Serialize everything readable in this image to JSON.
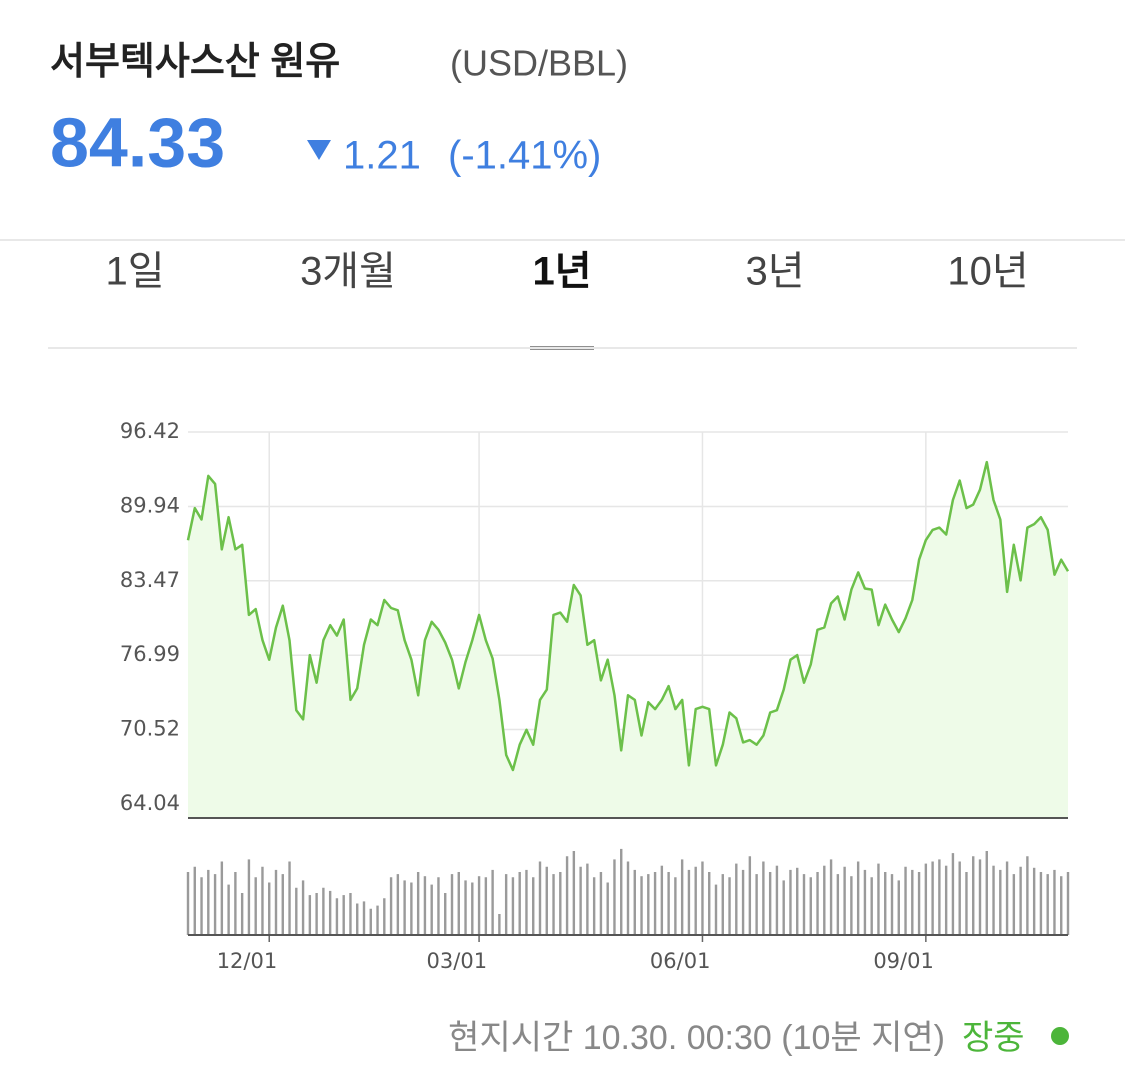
{
  "header": {
    "title": "서부텍사스산 원유",
    "unit": "(USD/BBL)",
    "price": 84.33,
    "change": 1.21,
    "change_pct": "(-1.41%)"
  },
  "tabs": {
    "items": [
      "1일",
      "3개월",
      "1년",
      "3년",
      "10년"
    ],
    "selected": 2
  },
  "footer": {
    "time": "현지시간 10.30. 00:30 (10분 지연)",
    "status": "장중"
  },
  "chart_data": [
    {
      "type": "line",
      "color": "#6cc04a",
      "fill": "#eefbe8",
      "grid": true,
      "values": [
        87.0,
        89.8,
        88.8,
        92.6,
        91.9,
        86.2,
        89.0,
        86.2,
        86.6,
        80.5,
        81.0,
        78.3,
        76.6,
        79.4,
        81.3,
        78.3,
        72.2,
        71.4,
        77.0,
        74.6,
        78.3,
        79.6,
        78.7,
        80.1,
        73.1,
        74.1,
        77.9,
        80.1,
        79.6,
        81.8,
        81.1,
        80.9,
        78.3,
        76.6,
        73.5,
        78.3,
        79.9,
        79.2,
        78.1,
        76.6,
        74.1,
        76.4,
        78.3,
        80.5,
        78.3,
        76.7,
        73.1,
        68.3,
        67.0,
        69.2,
        70.5,
        69.2,
        73.1,
        74.0,
        80.5,
        80.7,
        79.9,
        83.1,
        82.2,
        77.9,
        78.3,
        74.8,
        76.6,
        73.5,
        68.7,
        73.5,
        73.1,
        70.0,
        72.9,
        72.3,
        73.1,
        74.3,
        72.3,
        73.1,
        67.4,
        72.3,
        72.5,
        72.3,
        67.4,
        69.2,
        72.0,
        71.5,
        69.4,
        69.6,
        69.2,
        70.0,
        72.0,
        72.2,
        74.0,
        76.6,
        77.0,
        74.6,
        76.2,
        79.2,
        79.4,
        81.5,
        82.1,
        80.1,
        82.7,
        84.2,
        82.8,
        82.7,
        79.6,
        81.4,
        80.1,
        79.0,
        80.2,
        81.8,
        85.3,
        87.0,
        87.9,
        88.1,
        87.5,
        90.5,
        92.2,
        89.8,
        90.1,
        91.4,
        93.8,
        90.5,
        88.8,
        82.5,
        86.6,
        83.5,
        88.1,
        88.4,
        89.0,
        87.9,
        84.0,
        85.3,
        84.3
      ],
      "xlim": [
        0,
        130
      ],
      "xticks": [
        {
          "value": 12,
          "label": "12/01"
        },
        {
          "value": 43,
          "label": "03/01"
        },
        {
          "value": 76,
          "label": "06/01"
        },
        {
          "value": 109,
          "label": "09/01"
        }
      ],
      "ylim": [
        62.82,
        96.42
      ],
      "yticks": [
        64.04,
        70.52,
        76.99,
        83.47,
        89.94,
        96.42
      ]
    },
    {
      "type": "bar",
      "color": "#9a9a9a",
      "xlim": [
        0,
        130
      ],
      "ylim": [
        0,
        100
      ],
      "values": [
        60,
        65,
        55,
        62,
        58,
        70,
        48,
        60,
        40,
        72,
        55,
        65,
        50,
        62,
        58,
        70,
        45,
        52,
        38,
        40,
        45,
        42,
        35,
        38,
        40,
        30,
        32,
        25,
        28,
        35,
        55,
        58,
        52,
        50,
        60,
        56,
        48,
        55,
        40,
        58,
        60,
        52,
        50,
        56,
        55,
        62,
        20,
        58,
        55,
        60,
        62,
        55,
        70,
        65,
        58,
        60,
        75,
        80,
        65,
        68,
        55,
        60,
        50,
        72,
        82,
        70,
        62,
        56,
        58,
        60,
        66,
        60,
        55,
        72,
        62,
        65,
        70,
        60,
        48,
        58,
        55,
        68,
        62,
        75,
        58,
        70,
        60,
        66,
        52,
        62,
        64,
        58,
        55,
        60,
        66,
        72,
        58,
        65,
        56,
        70,
        62,
        55,
        68,
        60,
        58,
        52,
        65,
        62,
        60,
        68,
        70,
        72,
        66,
        78,
        70,
        60,
        75,
        72,
        80,
        66,
        62,
        70,
        58,
        65,
        75,
        64,
        60,
        58,
        62,
        56,
        60
      ]
    }
  ]
}
